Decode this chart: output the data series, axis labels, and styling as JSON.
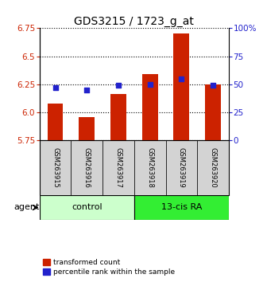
{
  "title": "GDS3215 / 1723_g_at",
  "samples": [
    "GSM263915",
    "GSM263916",
    "GSM263917",
    "GSM263918",
    "GSM263919",
    "GSM263920"
  ],
  "group_labels": [
    "control",
    "13-cis RA"
  ],
  "group_colors": [
    "#ccffcc",
    "#33ee33"
  ],
  "red_values": [
    6.08,
    5.96,
    6.16,
    6.34,
    6.7,
    6.25
  ],
  "blue_values_pct": [
    47,
    45,
    49,
    50,
    55,
    49
  ],
  "ymin": 5.75,
  "ymax": 6.75,
  "y2min": 0,
  "y2max": 100,
  "yticks": [
    5.75,
    6.0,
    6.25,
    6.5,
    6.75
  ],
  "y2ticks": [
    0,
    25,
    50,
    75,
    100
  ],
  "y2ticklabels": [
    "0",
    "25",
    "50",
    "75",
    "100%"
  ],
  "bar_color": "#cc2200",
  "dot_color": "#2222cc",
  "agent_label": "agent",
  "legend_items": [
    "transformed count",
    "percentile rank within the sample"
  ],
  "legend_colors": [
    "#cc2200",
    "#2222cc"
  ]
}
